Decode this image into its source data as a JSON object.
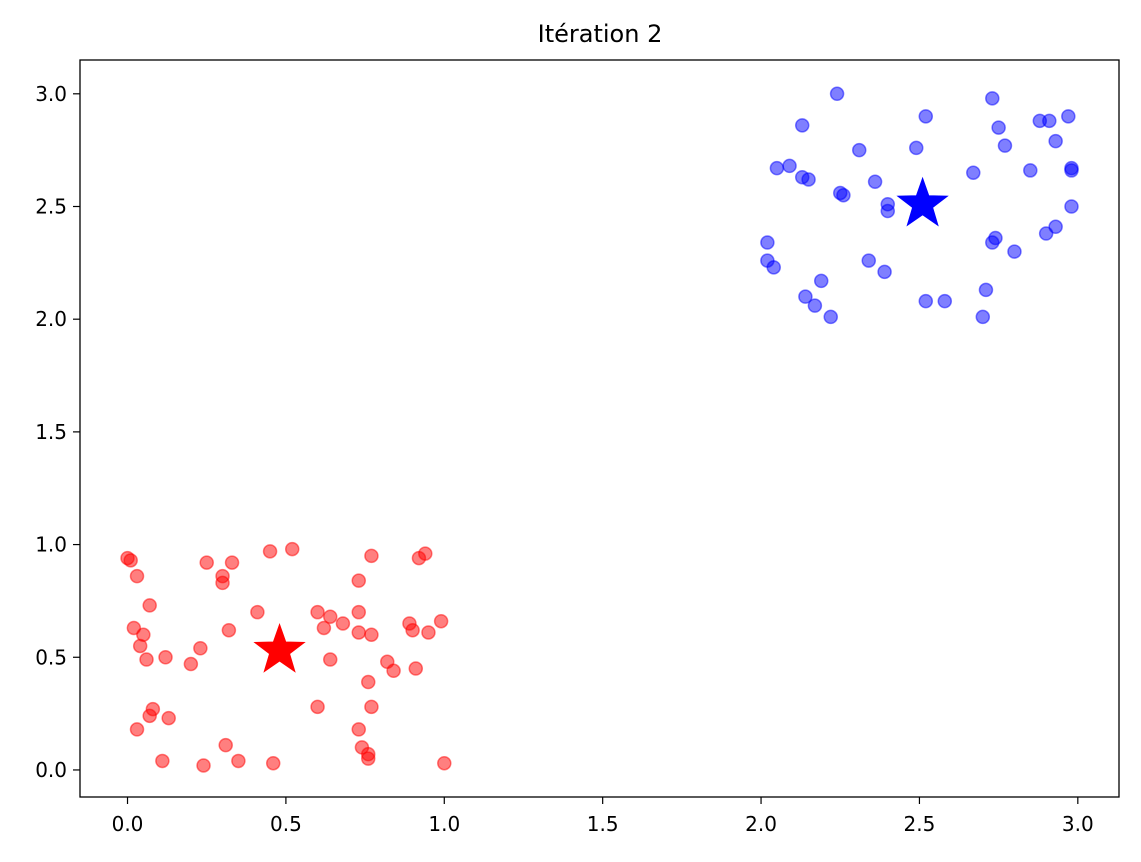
{
  "chart_data": {
    "type": "scatter",
    "title": "Itération 2",
    "xlabel": "",
    "ylabel": "",
    "xlim": [
      -0.15,
      3.13
    ],
    "ylim": [
      -0.12,
      3.15
    ],
    "x_ticks": [
      0.0,
      0.5,
      1.0,
      1.5,
      2.0,
      2.5,
      3.0
    ],
    "x_tick_labels": [
      "0.0",
      "0.5",
      "1.0",
      "1.5",
      "2.0",
      "2.5",
      "3.0"
    ],
    "y_ticks": [
      0.0,
      0.5,
      1.0,
      1.5,
      2.0,
      2.5,
      3.0
    ],
    "y_tick_labels": [
      "0.0",
      "0.5",
      "1.0",
      "1.5",
      "2.0",
      "2.5",
      "3.0"
    ],
    "grid": false,
    "series": [
      {
        "color": "#ff0000",
        "alpha": 0.5,
        "marker": "circle",
        "points": [
          [
            0.0,
            0.94
          ],
          [
            0.01,
            0.93
          ],
          [
            0.03,
            0.86
          ],
          [
            0.07,
            0.73
          ],
          [
            0.02,
            0.63
          ],
          [
            0.05,
            0.6
          ],
          [
            0.04,
            0.55
          ],
          [
            0.06,
            0.49
          ],
          [
            0.12,
            0.5
          ],
          [
            0.07,
            0.24
          ],
          [
            0.08,
            0.27
          ],
          [
            0.03,
            0.18
          ],
          [
            0.13,
            0.23
          ],
          [
            0.11,
            0.04
          ],
          [
            0.2,
            0.47
          ],
          [
            0.23,
            0.54
          ],
          [
            0.25,
            0.92
          ],
          [
            0.3,
            0.86
          ],
          [
            0.3,
            0.83
          ],
          [
            0.33,
            0.92
          ],
          [
            0.32,
            0.62
          ],
          [
            0.31,
            0.11
          ],
          [
            0.24,
            0.02
          ],
          [
            0.35,
            0.04
          ],
          [
            0.45,
            0.97
          ],
          [
            0.52,
            0.98
          ],
          [
            0.41,
            0.7
          ],
          [
            0.46,
            0.03
          ],
          [
            0.6,
            0.7
          ],
          [
            0.64,
            0.68
          ],
          [
            0.62,
            0.63
          ],
          [
            0.64,
            0.49
          ],
          [
            0.68,
            0.65
          ],
          [
            0.6,
            0.28
          ],
          [
            0.73,
            0.84
          ],
          [
            0.77,
            0.95
          ],
          [
            0.73,
            0.7
          ],
          [
            0.73,
            0.61
          ],
          [
            0.77,
            0.6
          ],
          [
            0.82,
            0.48
          ],
          [
            0.84,
            0.44
          ],
          [
            0.76,
            0.39
          ],
          [
            0.77,
            0.28
          ],
          [
            0.73,
            0.18
          ],
          [
            0.74,
            0.1
          ],
          [
            0.76,
            0.07
          ],
          [
            0.76,
            0.05
          ],
          [
            0.92,
            0.94
          ],
          [
            0.94,
            0.96
          ],
          [
            0.89,
            0.65
          ],
          [
            0.9,
            0.62
          ],
          [
            0.95,
            0.61
          ],
          [
            0.99,
            0.66
          ],
          [
            0.91,
            0.45
          ],
          [
            1.0,
            0.03
          ]
        ],
        "centroid": [
          0.48,
          0.53
        ]
      },
      {
        "color": "#0000ff",
        "alpha": 0.5,
        "marker": "circle",
        "points": [
          [
            2.24,
            3.0
          ],
          [
            2.13,
            2.86
          ],
          [
            2.05,
            2.67
          ],
          [
            2.09,
            2.68
          ],
          [
            2.13,
            2.63
          ],
          [
            2.15,
            2.62
          ],
          [
            2.31,
            2.75
          ],
          [
            2.25,
            2.56
          ],
          [
            2.26,
            2.55
          ],
          [
            2.36,
            2.61
          ],
          [
            2.4,
            2.51
          ],
          [
            2.4,
            2.48
          ],
          [
            2.02,
            2.34
          ],
          [
            2.02,
            2.26
          ],
          [
            2.04,
            2.23
          ],
          [
            2.19,
            2.17
          ],
          [
            2.14,
            2.1
          ],
          [
            2.17,
            2.06
          ],
          [
            2.22,
            2.01
          ],
          [
            2.34,
            2.26
          ],
          [
            2.39,
            2.21
          ],
          [
            2.49,
            2.76
          ],
          [
            2.52,
            2.9
          ],
          [
            2.73,
            2.98
          ],
          [
            2.75,
            2.85
          ],
          [
            2.77,
            2.77
          ],
          [
            2.67,
            2.65
          ],
          [
            2.88,
            2.88
          ],
          [
            2.91,
            2.88
          ],
          [
            2.97,
            2.9
          ],
          [
            2.93,
            2.79
          ],
          [
            2.85,
            2.66
          ],
          [
            2.98,
            2.67
          ],
          [
            2.98,
            2.66
          ],
          [
            2.98,
            2.5
          ],
          [
            2.93,
            2.41
          ],
          [
            2.9,
            2.38
          ],
          [
            2.8,
            2.3
          ],
          [
            2.74,
            2.36
          ],
          [
            2.73,
            2.34
          ],
          [
            2.71,
            2.13
          ],
          [
            2.7,
            2.01
          ],
          [
            2.52,
            2.08
          ],
          [
            2.58,
            2.08
          ]
        ],
        "centroid": [
          2.51,
          2.51
        ]
      }
    ]
  }
}
